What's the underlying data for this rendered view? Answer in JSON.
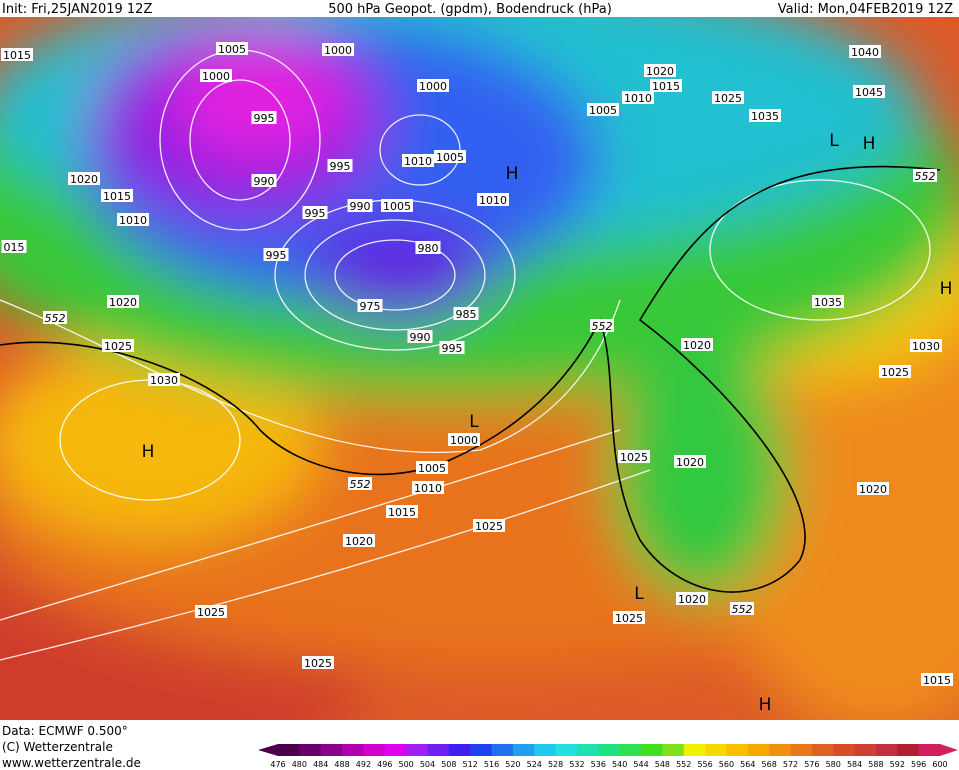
{
  "header": {
    "init": "Init: Fri,25JAN2019 12Z",
    "title": "500 hPa Geopot. (gpdm), Bodendruck (hPa)",
    "valid": "Valid: Mon,04FEB2019 12Z"
  },
  "map": {
    "isobar_labels": [
      "1015",
      "1005",
      "1000",
      "1000",
      "1000",
      "995",
      "995",
      "990",
      "1010",
      "1005",
      "995",
      "990",
      "1005",
      "1010",
      "1020",
      "1015",
      "1010",
      "015",
      "995",
      "980",
      "975",
      "985",
      "990",
      "995",
      "1020",
      "1025",
      "1030",
      "1000",
      "1005",
      "1010",
      "1015",
      "1020",
      "1025",
      "1025",
      "1025",
      "1025",
      "1020",
      "1020",
      "1025",
      "1020",
      "1035",
      "1030",
      "1025",
      "1020",
      "1015",
      "1020",
      "1015",
      "1010",
      "1005",
      "1025",
      "1035",
      "1040",
      "1045"
    ],
    "contour_labels": [
      "552",
      "552",
      "552",
      "552",
      "552"
    ],
    "pressure_centers": [
      "H",
      "H",
      "H",
      "H",
      "H",
      "L",
      "L",
      "L"
    ]
  },
  "footer": {
    "data": "Data: ECMWF  0.500°",
    "copyright": "(C) Wetterzentrale",
    "url": "www.wetterzentrale.de"
  },
  "colorbar": {
    "labels": [
      476,
      480,
      484,
      488,
      492,
      496,
      500,
      504,
      508,
      512,
      516,
      520,
      524,
      528,
      532,
      536,
      540,
      544,
      548,
      552,
      556,
      560,
      564,
      568,
      572,
      576,
      580,
      584,
      588,
      592,
      596,
      600
    ],
    "colors": [
      "#4a004a",
      "#6a006a",
      "#8a008a",
      "#b000b0",
      "#d000d0",
      "#e000f0",
      "#a020f0",
      "#7020f0",
      "#4020f0",
      "#2040f0",
      "#2070f0",
      "#20a0f0",
      "#20c8f0",
      "#20e0e0",
      "#20e0b0",
      "#20e080",
      "#30e050",
      "#40e020",
      "#80e020",
      "#f0f000",
      "#f8d800",
      "#f8c000",
      "#f8a800",
      "#f09010",
      "#e87818",
      "#e06020",
      "#d84c28",
      "#d04030",
      "#c03040",
      "#b02030",
      "#d02060"
    ]
  }
}
